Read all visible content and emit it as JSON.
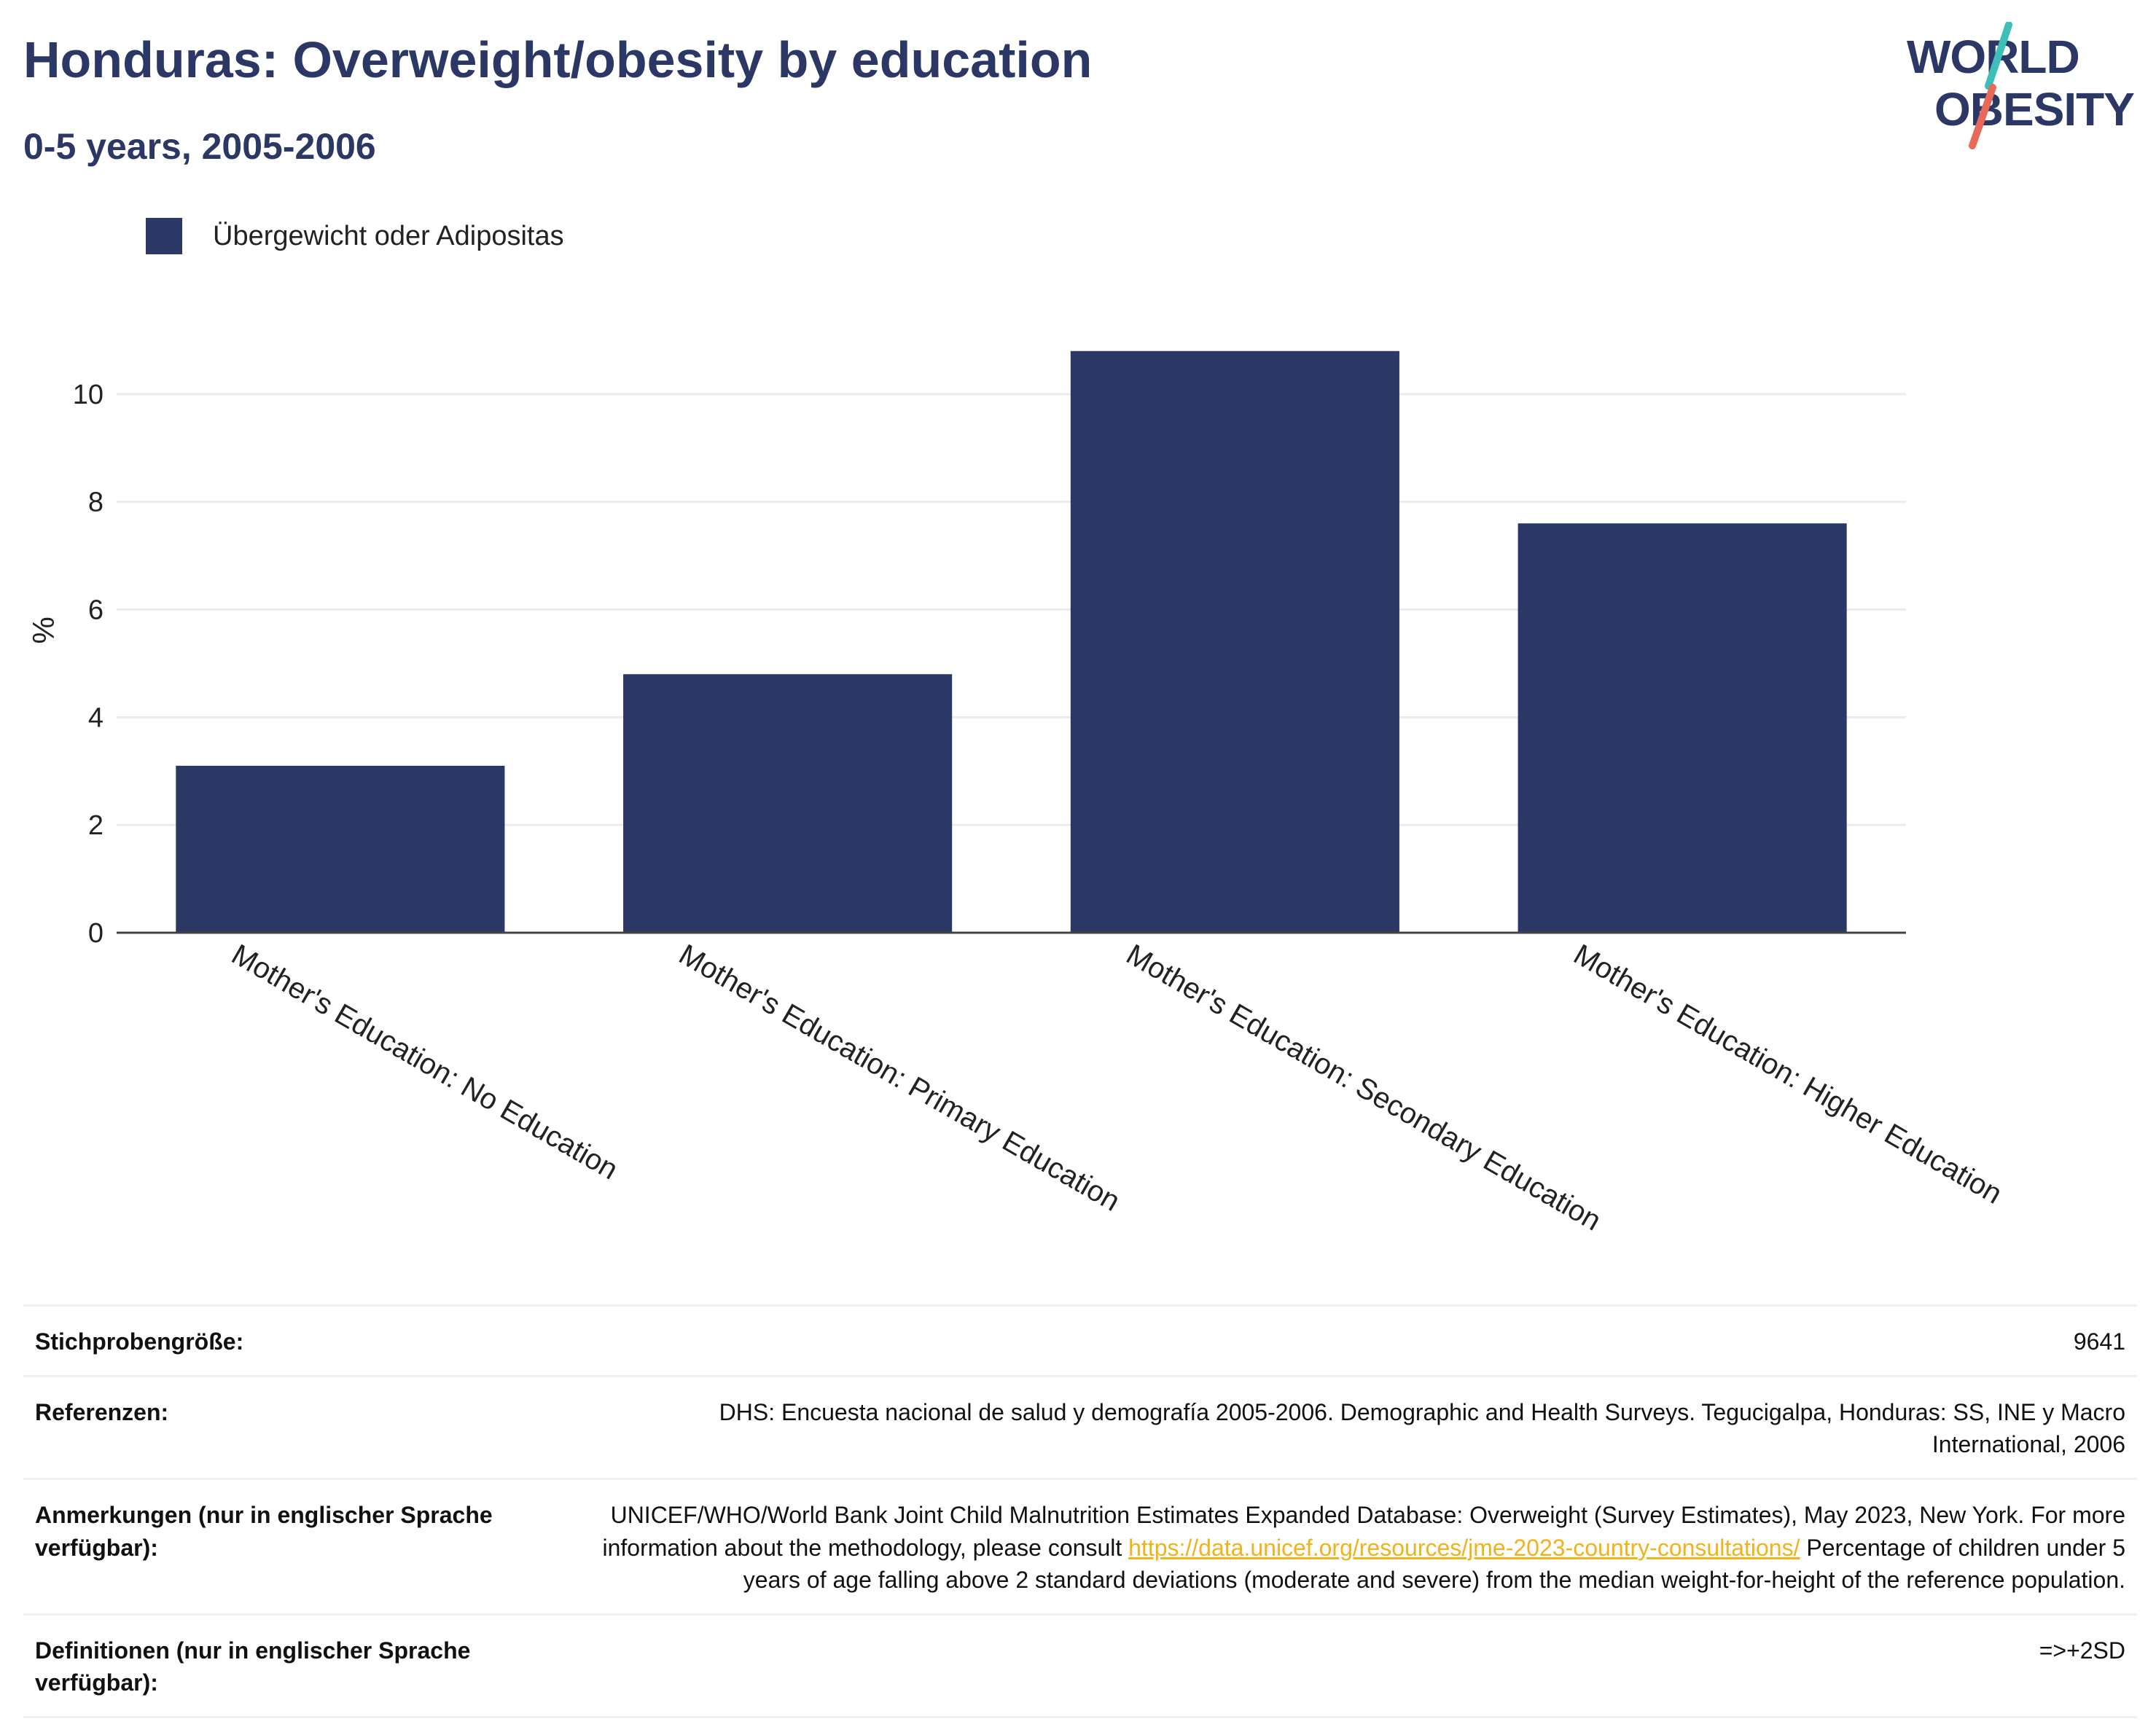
{
  "header": {
    "title": "Honduras: Overweight/obesity by education",
    "subtitle": "0-5 years, 2005-2006"
  },
  "logo": {
    "line1": "WORLD",
    "line2": "OBESITY",
    "colors": {
      "text": "#2b3764",
      "slash_top": "#3dbfb8",
      "slash_bottom": "#e8695a"
    }
  },
  "legend": {
    "label": "Übergewicht oder Adipositas",
    "color": "#2b3764"
  },
  "chart_data": {
    "type": "bar",
    "categories": [
      "Mother's Education: No Education",
      "Mother's Education: Primary Education",
      "Mother's Education: Secondary Education",
      "Mother's Education: Higher Education"
    ],
    "series": [
      {
        "name": "Übergewicht oder Adipositas",
        "values": [
          3.1,
          4.8,
          10.8,
          7.6
        ],
        "color": "#2b3764"
      }
    ],
    "ylabel": "%",
    "ylim": [
      0,
      11.5
    ],
    "yticks": [
      0,
      2,
      4,
      6,
      8,
      10
    ],
    "grid": true,
    "legend_position": "top-left"
  },
  "info": {
    "sample_size_label": "Stichprobengröße:",
    "sample_size_value": "9641",
    "references_label": "Referenzen:",
    "references_value": "DHS: Encuesta nacional de salud y demografía 2005-2006. Demographic and Health Surveys. Tegucigalpa, Honduras: SS, INE y Macro International, 2006",
    "notes_label": "Anmerkungen (nur in englischer Sprache verfügbar):",
    "notes_text_before": "UNICEF/WHO/World Bank Joint Child Malnutrition Estimates Expanded Database: Overweight (Survey Estimates), May 2023, New York. For more information about the methodology, please consult ",
    "notes_link": "https://data.unicef.org/resources/jme-2023-country-consultations/",
    "notes_text_after": " Percentage of children under 5 years of age falling above 2 standard deviations (moderate and severe) from the median weight-for-height of the reference population.",
    "definitions_label": "Definitionen (nur in englischer Sprache verfügbar):",
    "definitions_value": "=>+2SD"
  }
}
